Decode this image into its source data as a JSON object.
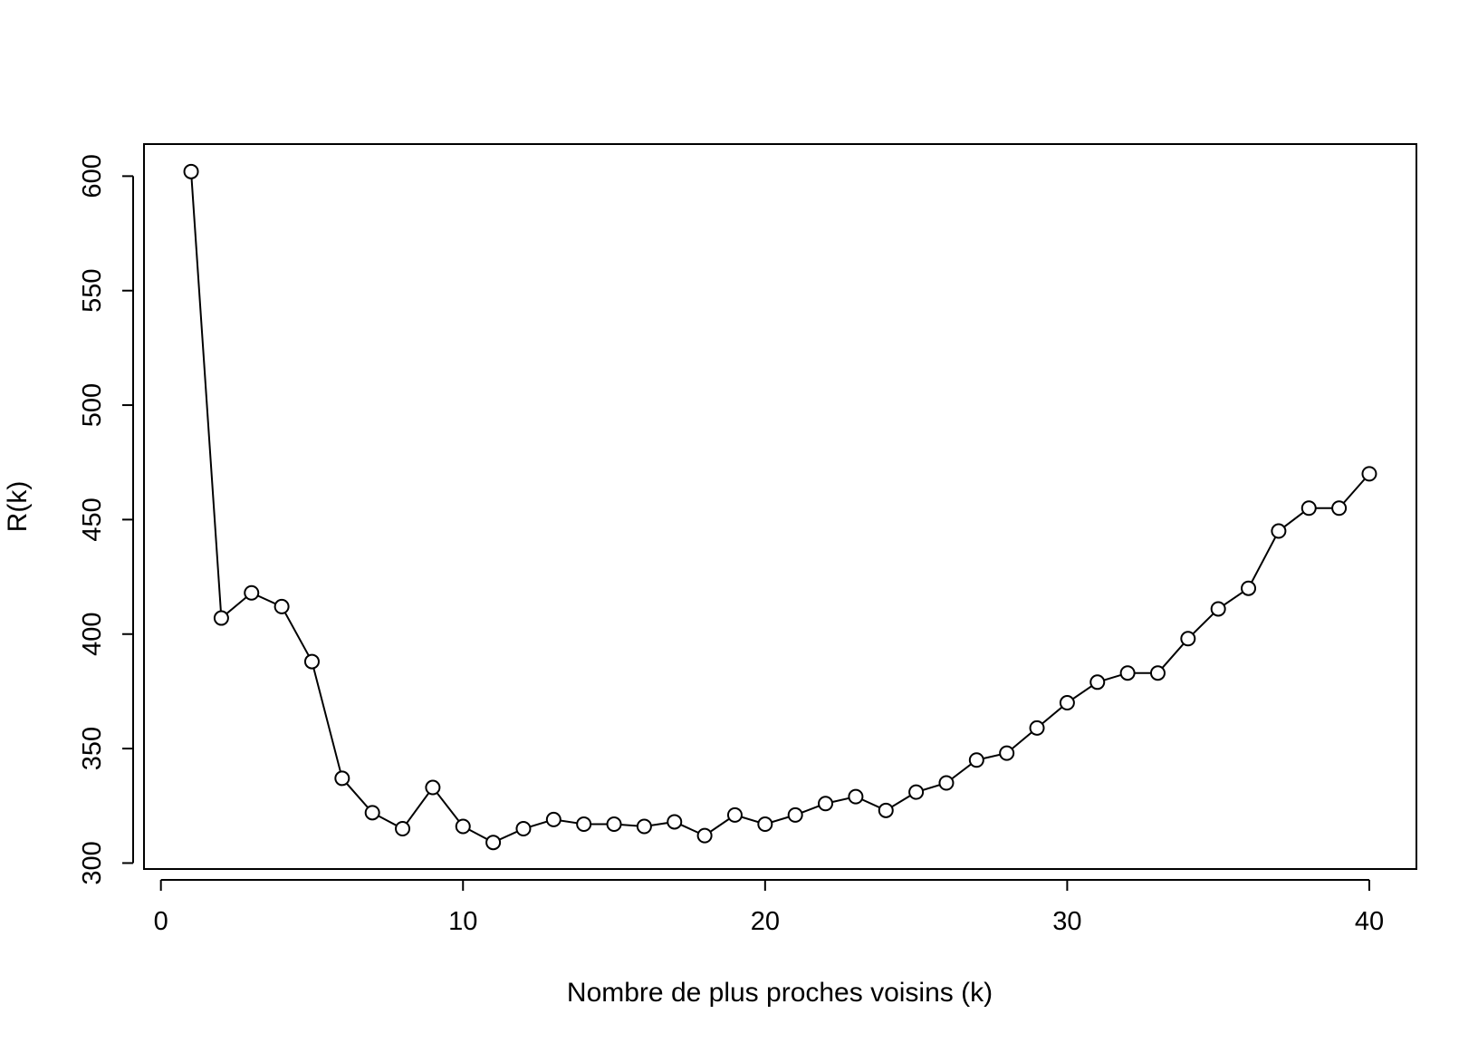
{
  "chart_data": {
    "type": "line",
    "markers": "open-circle",
    "title": "",
    "xlabel": "Nombre de plus proches voisins (k)",
    "ylabel": "R(k)",
    "xlim": [
      -0.56,
      41.56
    ],
    "ylim": [
      297.4,
      614.0
    ],
    "x_ticks": [
      0,
      10,
      20,
      30,
      40
    ],
    "y_ticks": [
      300,
      350,
      400,
      450,
      500,
      550,
      600
    ],
    "grid": false,
    "legend": "none",
    "line_color": "#000000",
    "series": [
      {
        "x": [
          1,
          2,
          3,
          4,
          5,
          6,
          7,
          8,
          9,
          10,
          11,
          12,
          13,
          14,
          15,
          16,
          17,
          18,
          19,
          20,
          21,
          22,
          23,
          24,
          25,
          26,
          27,
          28,
          29,
          30,
          31,
          32,
          33,
          34,
          35,
          36,
          37,
          38,
          39,
          40
        ],
        "y": [
          602,
          407,
          418,
          412,
          388,
          337,
          322,
          315,
          333,
          316,
          309,
          315,
          319,
          317,
          317,
          316,
          318,
          312,
          321,
          317,
          321,
          326,
          329,
          323,
          331,
          335,
          345,
          348,
          359,
          370,
          379,
          383,
          383,
          398,
          411,
          420,
          445,
          455,
          455,
          470
        ]
      }
    ]
  }
}
